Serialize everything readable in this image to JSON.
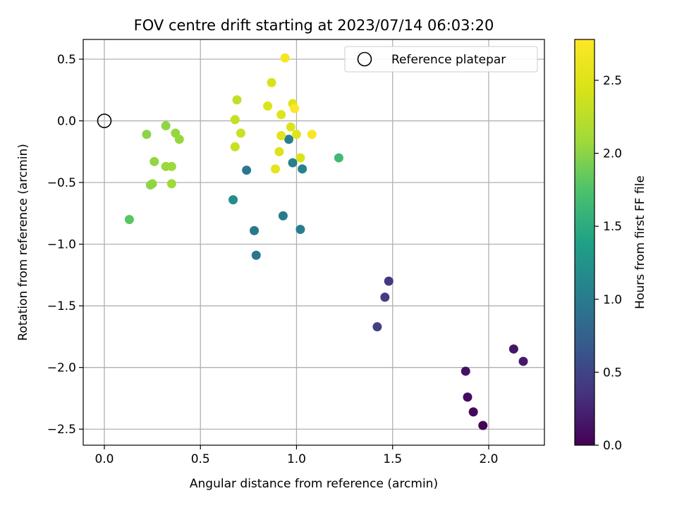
{
  "chart_data": {
    "type": "scatter",
    "title": "FOV centre drift starting at 2023/07/14 06:03:20",
    "xlabel": "Angular distance from reference (arcmin)",
    "ylabel": "Rotation from reference (arcmin)",
    "xlim": [
      -0.11,
      2.29
    ],
    "ylim": [
      -2.63,
      0.66
    ],
    "xticks": [
      0.0,
      0.5,
      1.0,
      1.5,
      2.0
    ],
    "xtick_labels": [
      "0.0",
      "0.5",
      "1.0",
      "1.5",
      "2.0"
    ],
    "yticks": [
      0.5,
      0.0,
      -0.5,
      -1.0,
      -1.5,
      -2.0,
      -2.5
    ],
    "ytick_labels": [
      "0.5",
      "0.0",
      "−0.5",
      "−1.0",
      "−1.5",
      "−2.0",
      "−2.5"
    ],
    "grid": true,
    "legend": {
      "position": "top-right",
      "entries": [
        "Reference platepar"
      ]
    },
    "reference_point": {
      "x": 0.0,
      "y": 0.0,
      "label": "Reference platepar"
    },
    "colorbar": {
      "label": "Hours from first FF file",
      "range": [
        0.0,
        2.78
      ],
      "ticks": [
        0.0,
        0.5,
        1.0,
        1.5,
        2.0,
        2.5
      ],
      "tick_labels": [
        "0.0",
        "0.5",
        "1.0",
        "1.5",
        "2.0",
        "2.5"
      ],
      "colormap": "viridis"
    },
    "points": [
      {
        "x": 1.97,
        "y": -2.47,
        "c": 0.02
      },
      {
        "x": 1.92,
        "y": -2.36,
        "c": 0.05
      },
      {
        "x": 1.89,
        "y": -2.24,
        "c": 0.08
      },
      {
        "x": 1.88,
        "y": -2.03,
        "c": 0.12
      },
      {
        "x": 2.13,
        "y": -1.85,
        "c": 0.15
      },
      {
        "x": 2.18,
        "y": -1.95,
        "c": 0.18
      },
      {
        "x": 1.48,
        "y": -1.3,
        "c": 0.4
      },
      {
        "x": 1.46,
        "y": -1.43,
        "c": 0.43
      },
      {
        "x": 1.42,
        "y": -1.67,
        "c": 0.46
      },
      {
        "x": 0.79,
        "y": -1.09,
        "c": 0.95
      },
      {
        "x": 0.78,
        "y": -0.89,
        "c": 0.97
      },
      {
        "x": 0.74,
        "y": -0.4,
        "c": 0.98
      },
      {
        "x": 0.93,
        "y": -0.77,
        "c": 1.0
      },
      {
        "x": 1.02,
        "y": -0.88,
        "c": 1.02
      },
      {
        "x": 0.96,
        "y": -0.15,
        "c": 1.03
      },
      {
        "x": 0.98,
        "y": -0.34,
        "c": 1.05
      },
      {
        "x": 1.03,
        "y": -0.39,
        "c": 1.07
      },
      {
        "x": 0.67,
        "y": -0.64,
        "c": 1.2
      },
      {
        "x": 1.22,
        "y": -0.3,
        "c": 1.65
      },
      {
        "x": 0.13,
        "y": -0.8,
        "c": 1.8
      },
      {
        "x": 0.22,
        "y": -0.11,
        "c": 2.0
      },
      {
        "x": 0.32,
        "y": -0.04,
        "c": 2.02
      },
      {
        "x": 0.37,
        "y": -0.1,
        "c": 2.04
      },
      {
        "x": 0.39,
        "y": -0.15,
        "c": 2.05
      },
      {
        "x": 0.26,
        "y": -0.33,
        "c": 2.03
      },
      {
        "x": 0.32,
        "y": -0.37,
        "c": 2.06
      },
      {
        "x": 0.35,
        "y": -0.37,
        "c": 2.07
      },
      {
        "x": 0.25,
        "y": -0.51,
        "c": 2.04
      },
      {
        "x": 0.24,
        "y": -0.52,
        "c": 2.01
      },
      {
        "x": 0.35,
        "y": -0.51,
        "c": 2.08
      },
      {
        "x": 0.69,
        "y": 0.17,
        "c": 2.3
      },
      {
        "x": 0.68,
        "y": 0.01,
        "c": 2.32
      },
      {
        "x": 0.71,
        "y": -0.1,
        "c": 2.34
      },
      {
        "x": 0.68,
        "y": -0.21,
        "c": 2.33
      },
      {
        "x": 0.87,
        "y": 0.31,
        "c": 2.45
      },
      {
        "x": 0.85,
        "y": 0.12,
        "c": 2.47
      },
      {
        "x": 0.92,
        "y": 0.05,
        "c": 2.5
      },
      {
        "x": 0.92,
        "y": -0.12,
        "c": 2.52
      },
      {
        "x": 0.91,
        "y": -0.25,
        "c": 2.49
      },
      {
        "x": 0.89,
        "y": -0.39,
        "c": 2.55
      },
      {
        "x": 0.97,
        "y": -0.05,
        "c": 2.48
      },
      {
        "x": 0.98,
        "y": 0.14,
        "c": 2.51
      },
      {
        "x": 1.0,
        "y": -0.11,
        "c": 2.53
      },
      {
        "x": 1.02,
        "y": -0.3,
        "c": 2.46
      },
      {
        "x": 0.94,
        "y": 0.51,
        "c": 2.7
      },
      {
        "x": 0.99,
        "y": 0.1,
        "c": 2.78
      },
      {
        "x": 1.08,
        "y": -0.11,
        "c": 2.72
      }
    ]
  }
}
